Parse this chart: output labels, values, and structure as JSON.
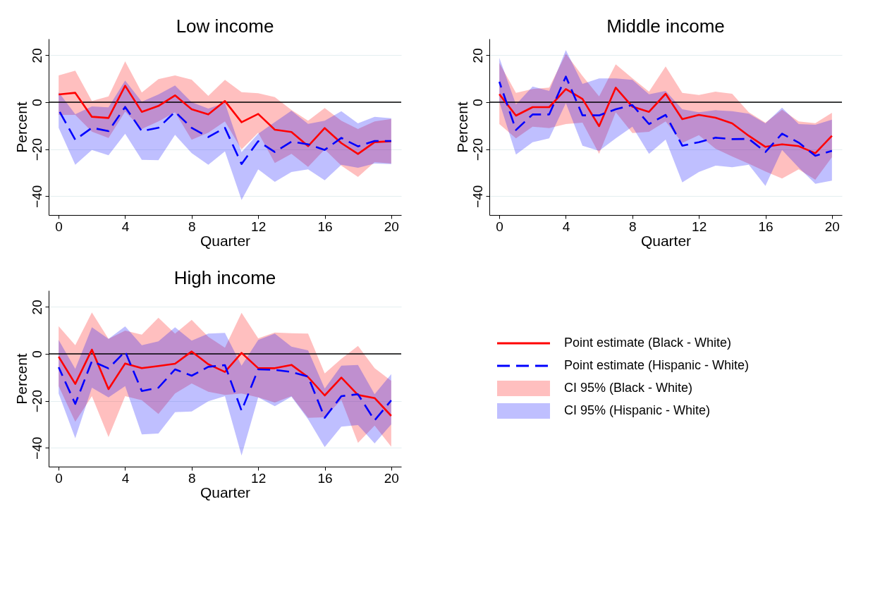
{
  "chart_data": [
    {
      "type": "line",
      "title": "Low income",
      "xlabel": "Quarter",
      "ylabel": "Percent",
      "x": [
        0,
        1,
        2,
        3,
        4,
        5,
        6,
        7,
        8,
        9,
        10,
        11,
        12,
        13,
        14,
        15,
        16,
        17,
        18,
        19,
        20
      ],
      "xlim": [
        -0.6,
        20.6
      ],
      "ylim": [
        -48,
        27
      ],
      "xticks": [
        0,
        4,
        8,
        12,
        16,
        20
      ],
      "yticks": [
        -40,
        -20,
        0,
        20
      ],
      "grid": "y",
      "ref_lines": [
        {
          "axis": "y",
          "value": 0,
          "color": "#000000"
        }
      ],
      "series": [
        {
          "color": "#ff0000",
          "line_style": "solid",
          "values": [
            3.3,
            4,
            -6.2,
            -6.7,
            7,
            -4.1,
            -1.6,
            2.9,
            -3,
            -5.2,
            0.5,
            -8.5,
            -5,
            -11.7,
            -12.7,
            -18.7,
            -11,
            -17.4,
            -22,
            -17,
            -16.6
          ],
          "lower": [
            -5.4,
            -5.4,
            -12.5,
            -15.2,
            -4,
            -11.4,
            -8.2,
            -4.3,
            -16,
            -13,
            -8.2,
            -20.1,
            -13,
            -25.9,
            -22,
            -27.5,
            -20.1,
            -27,
            -31.8,
            -25.5,
            -26.1
          ],
          "upper": [
            11.4,
            13.4,
            0.5,
            2.5,
            17.4,
            4.1,
            9.8,
            11.4,
            9.6,
            2.7,
            9.5,
            4.3,
            3.8,
            2.2,
            -3.3,
            -7.9,
            -2.5,
            -7.9,
            -11.4,
            -8.2,
            -7.1
          ]
        },
        {
          "color": "#0000ff",
          "line_style": "dashed",
          "values": [
            -3.3,
            -16,
            -10.9,
            -12.3,
            -2,
            -12.3,
            -10.9,
            -4.1,
            -10.9,
            -14.8,
            -10.9,
            -26.3,
            -16.6,
            -21.2,
            -16.8,
            -17.9,
            -20.3,
            -15.2,
            -18.8,
            -16.5,
            -16.5
          ],
          "lower": [
            -10.9,
            -26.6,
            -20.3,
            -22.6,
            -13.4,
            -24.5,
            -24.7,
            -13.9,
            -21.7,
            -26.6,
            -20.9,
            -41.6,
            -28.6,
            -33.9,
            -29.7,
            -28.6,
            -33.2,
            -26.6,
            -27.9,
            -26.1,
            -26.3
          ],
          "upper": [
            4.3,
            -5.1,
            -1.8,
            -2.2,
            9.2,
            0.2,
            3.3,
            7.1,
            0,
            -2.7,
            -0.3,
            -21.2,
            -13.4,
            -8.5,
            -3.6,
            -9.2,
            -7.9,
            -3.8,
            -9,
            -6.2,
            -6.8
          ]
        }
      ]
    },
    {
      "type": "line",
      "title": "Middle income",
      "xlabel": "Quarter",
      "ylabel": "Percent",
      "x": [
        0,
        1,
        2,
        3,
        4,
        5,
        6,
        7,
        8,
        9,
        10,
        11,
        12,
        13,
        14,
        15,
        16,
        17,
        18,
        19,
        20
      ],
      "xlim": [
        -0.6,
        20.6
      ],
      "ylim": [
        -48,
        27
      ],
      "xticks": [
        0,
        4,
        8,
        12,
        16,
        20
      ],
      "yticks": [
        -40,
        -20,
        0,
        20
      ],
      "grid": "y",
      "ref_lines": [
        {
          "axis": "y",
          "value": 0,
          "color": "#000000"
        }
      ],
      "series": [
        {
          "color": "#ff0000",
          "line_style": "solid",
          "values": [
            3.4,
            -5.7,
            -2.1,
            -2.1,
            5.6,
            1.4,
            -10.2,
            6.2,
            -1.9,
            -4.1,
            3.6,
            -7.2,
            -5.4,
            -6.6,
            -9,
            -14.3,
            -19,
            -17.9,
            -18.7,
            -21.7,
            -14.3
          ],
          "lower": [
            -9.3,
            -15.4,
            -10.4,
            -11,
            -9.3,
            -8.7,
            -22,
            -4.3,
            -13.1,
            -12.6,
            -8.2,
            -17.3,
            -14,
            -19.8,
            -23.1,
            -26.2,
            -29.5,
            -32.5,
            -28.6,
            -33,
            -23.4
          ],
          "upper": [
            16.7,
            4,
            5.6,
            6.2,
            20.6,
            11.2,
            2.5,
            16.1,
            10.2,
            4.5,
            15.2,
            4,
            3.1,
            4.5,
            3.6,
            -4.3,
            -8.7,
            -3.2,
            -8.2,
            -8.9,
            -4.5
          ]
        },
        {
          "color": "#0000ff",
          "line_style": "dashed",
          "values": [
            8.7,
            -11.8,
            -5.2,
            -5.2,
            10.9,
            -5.6,
            -5.6,
            -3,
            -1.2,
            -9.3,
            -5.4,
            -18.5,
            -17,
            -15.1,
            -15.7,
            -15.6,
            -21.2,
            -13.4,
            -17.2,
            -22.8,
            -20.7
          ],
          "lower": [
            0.1,
            -22.3,
            -17,
            -15.4,
            -0.4,
            -18.5,
            -20.7,
            -15.4,
            -10.4,
            -22,
            -15.9,
            -34.1,
            -29.7,
            -27,
            -27.7,
            -26.6,
            -35.6,
            -20.3,
            -27.8,
            -34.7,
            -33.4
          ],
          "upper": [
            18.9,
            -1,
            6.7,
            4.8,
            22.2,
            7.8,
            10.1,
            10.1,
            9.5,
            3.4,
            4.8,
            -3,
            -4.3,
            -3.4,
            -3.8,
            -4.9,
            -9,
            -2.3,
            -9.3,
            -9.6,
            -7.4
          ]
        }
      ]
    },
    {
      "type": "line",
      "title": "High income",
      "xlabel": "Quarter",
      "ylabel": "Percent",
      "x": [
        0,
        1,
        2,
        3,
        4,
        5,
        6,
        7,
        8,
        9,
        10,
        11,
        12,
        13,
        14,
        15,
        16,
        17,
        18,
        19,
        20
      ],
      "xlim": [
        -0.6,
        20.6
      ],
      "ylim": [
        -48,
        27
      ],
      "xticks": [
        0,
        4,
        8,
        12,
        16,
        20
      ],
      "yticks": [
        -40,
        -20,
        0,
        20
      ],
      "grid": "y",
      "legend": "right",
      "annotations": [
        "CI 95% (Black - White)",
        "CI 95% (Hispanic - White)"
      ],
      "ref_lines": [
        {
          "axis": "y",
          "value": 0,
          "color": "#000000"
        }
      ],
      "series": [
        {
          "name": "Point estimate (Black - White)",
          "color": "#ff0000",
          "line_style": "solid",
          "values": [
            -1.2,
            -12.8,
            1.8,
            -15,
            -4.1,
            -6.1,
            -5.2,
            -4.2,
            1,
            -4.4,
            -7.7,
            0.4,
            -6.1,
            -6.1,
            -4.7,
            -9.9,
            -17.7,
            -10.1,
            -17.5,
            -18.8,
            -26.4
          ],
          "lower": [
            -13.7,
            -28.9,
            -18,
            -35.4,
            -18,
            -19.7,
            -25.6,
            -16.9,
            -12.6,
            -16.1,
            -17.5,
            -16.9,
            -18.5,
            -20.7,
            -18,
            -27.2,
            -27,
            -19.6,
            -37.9,
            -30.5,
            -39.5
          ],
          "upper": [
            11.8,
            3.7,
            17.6,
            6.4,
            9.9,
            8.2,
            15.4,
            8.6,
            14.5,
            7.3,
            2.6,
            17.5,
            6.6,
            9.1,
            8.8,
            8.6,
            -8.3,
            -2.1,
            3.4,
            -6.1,
            -11.5
          ]
        },
        {
          "name": "Point estimate (Hispanic - White)",
          "color": "#0000ff",
          "line_style": "dashed",
          "values": [
            -5.7,
            -21.3,
            -3.1,
            -6.2,
            1,
            -15.8,
            -14.4,
            -6.6,
            -9.3,
            -5.5,
            -4.8,
            -24.2,
            -6.6,
            -6.8,
            -7.7,
            -9.7,
            -27.2,
            -18,
            -17.2,
            -28.3,
            -19.8
          ],
          "lower": [
            -16.9,
            -35.9,
            -14.4,
            -18.5,
            -13.7,
            -34.3,
            -33.9,
            -24.8,
            -24.5,
            -20.2,
            -18,
            -43.3,
            -18.5,
            -22.3,
            -18.2,
            -27.8,
            -39.7,
            -31,
            -30.3,
            -38.1,
            -30
          ],
          "upper": [
            5.9,
            -6.4,
            11.3,
            6.4,
            11.7,
            3.7,
            5.3,
            11.3,
            5.6,
            8.6,
            8.9,
            -5,
            5.9,
            8.6,
            3.1,
            1.5,
            -14.8,
            -5,
            -4.7,
            -17.2,
            -8.6
          ]
        }
      ]
    }
  ]
}
